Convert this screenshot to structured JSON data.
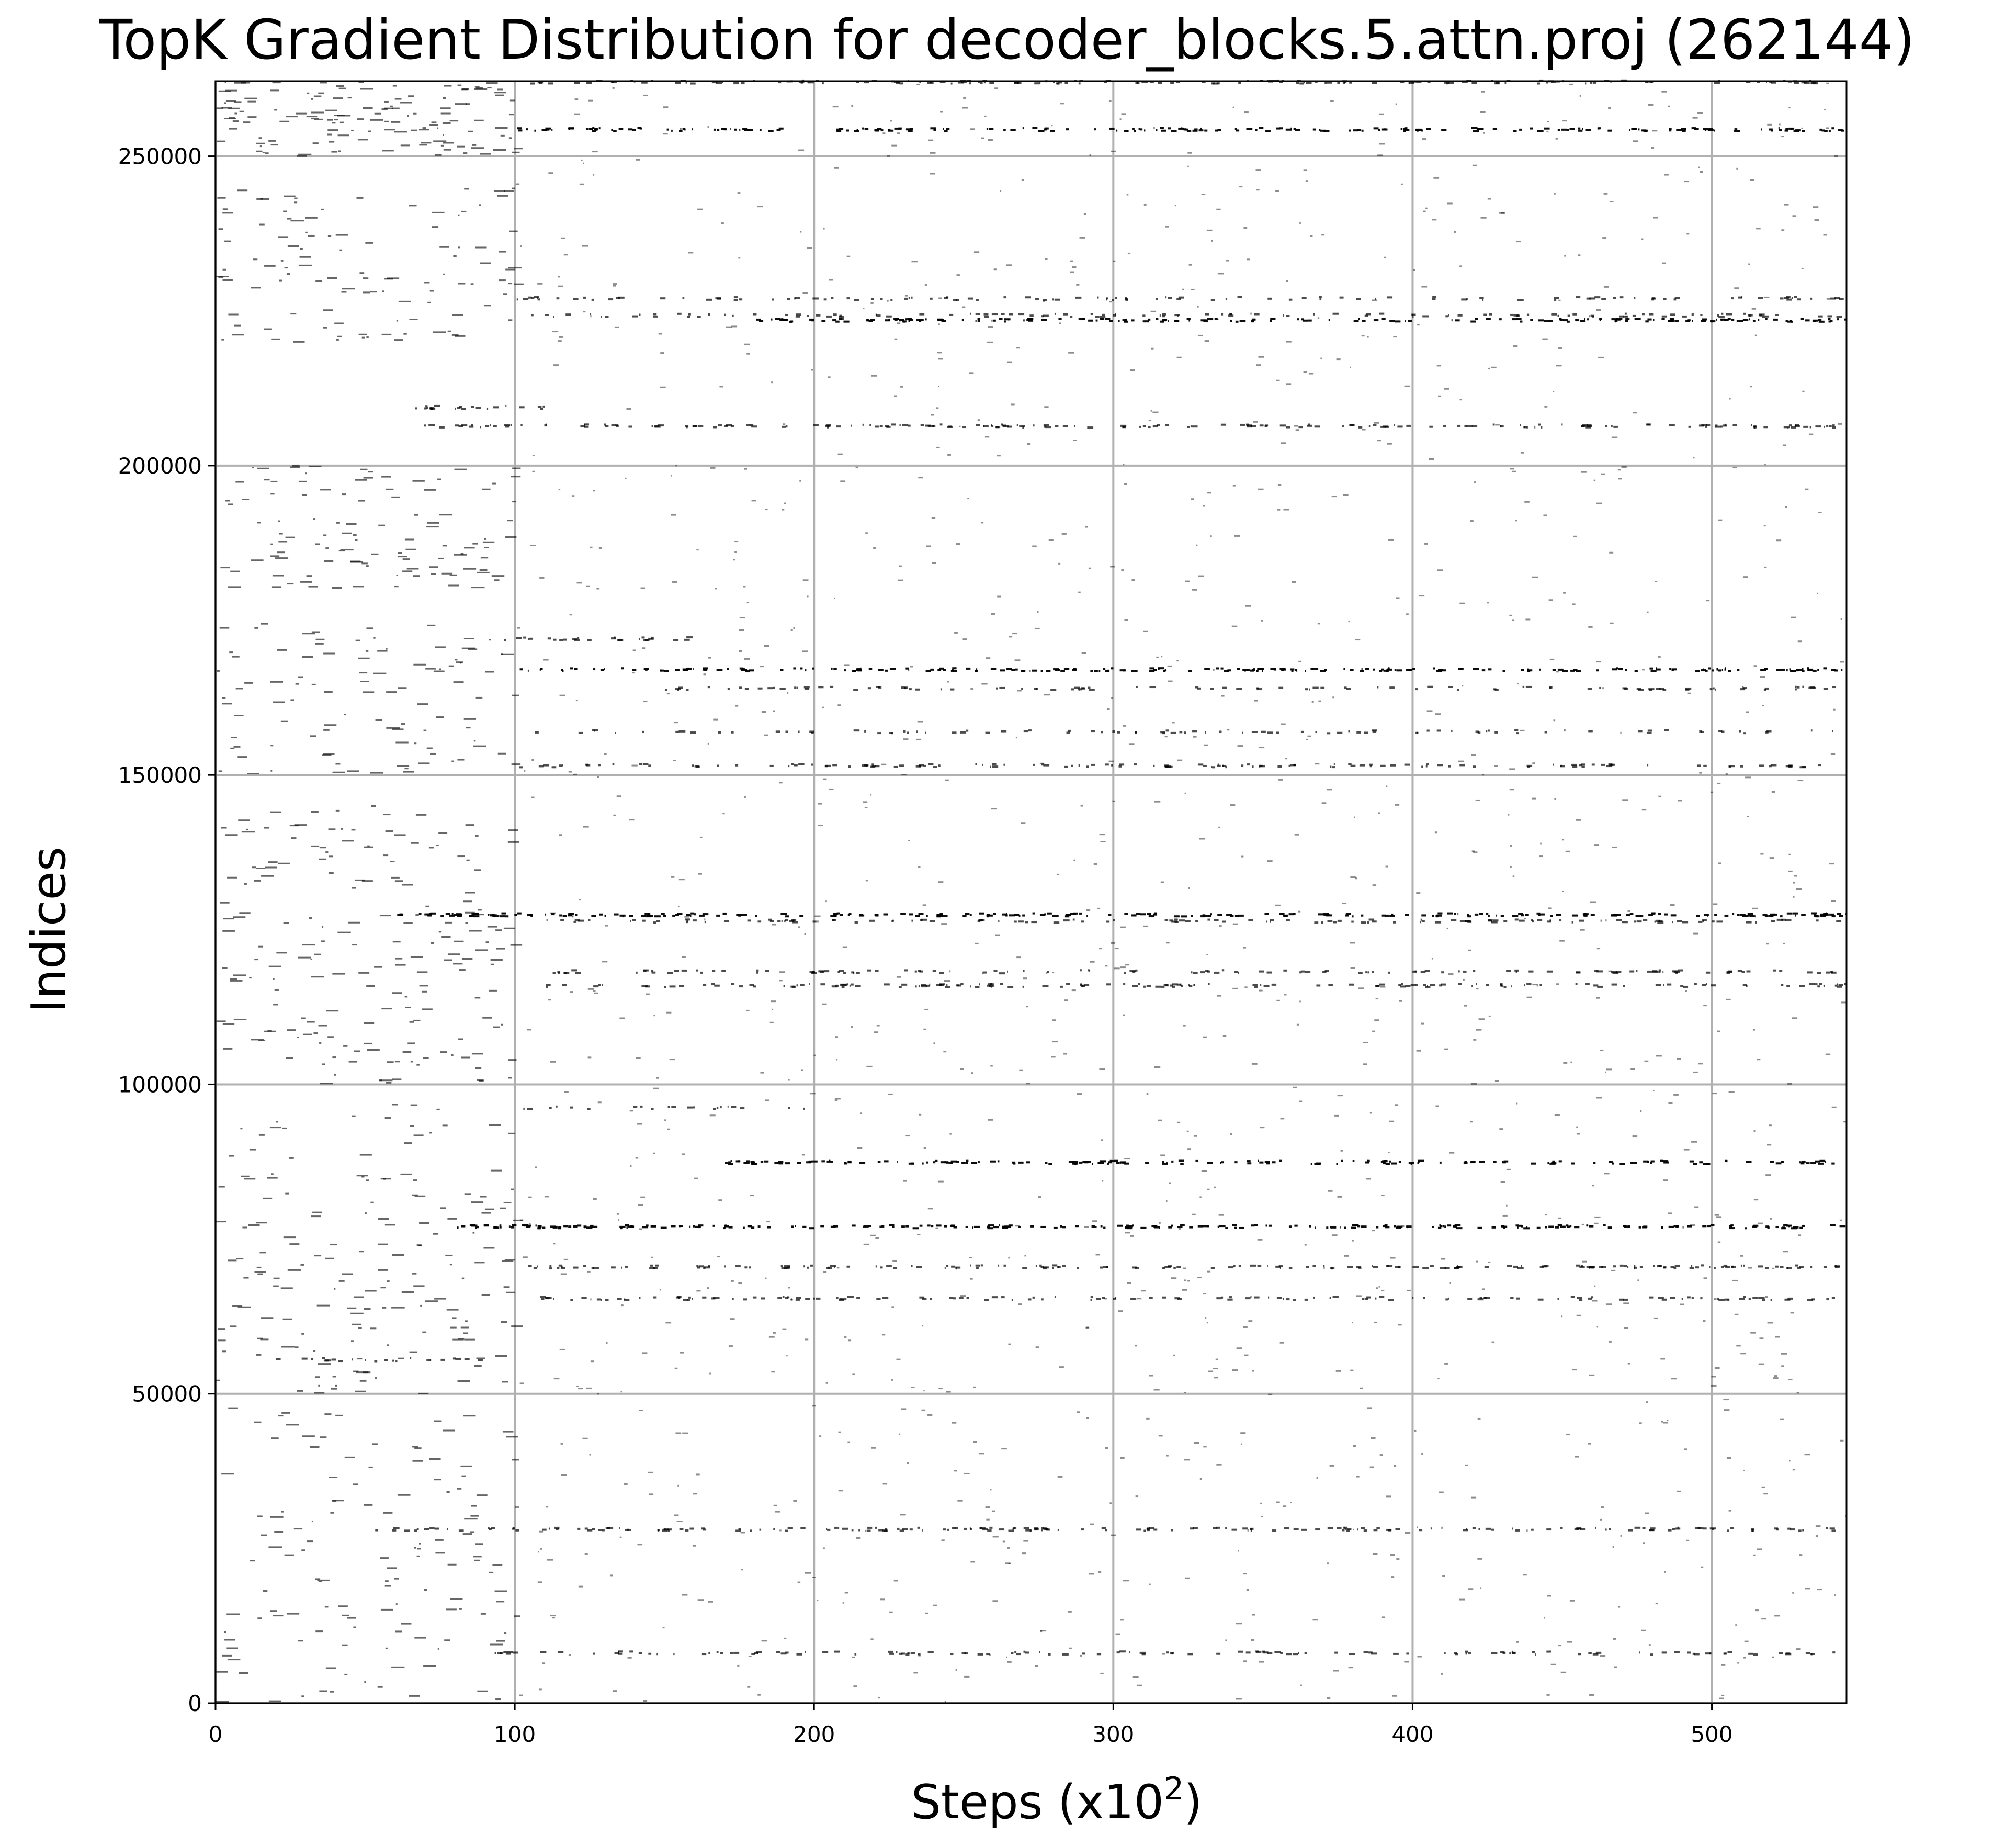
{
  "chart_data": {
    "type": "scatter",
    "title": "TopK Gradient Distribution for decoder_blocks.5.attn.proj (262144)",
    "xlabel": "Steps (x10",
    "xlabel_exponent": "2",
    "xlabel_close": ")",
    "ylabel": "Indices",
    "xlim": [
      0,
      545
    ],
    "ylim": [
      0,
      262144
    ],
    "grid": true,
    "marker_color": "#000000",
    "grid_color": "#b0b0b0",
    "x_ticks": [
      {
        "value": 0,
        "label": "0"
      },
      {
        "value": 100,
        "label": "100"
      },
      {
        "value": 200,
        "label": "200"
      },
      {
        "value": 300,
        "label": "300"
      },
      {
        "value": 400,
        "label": "400"
      },
      {
        "value": 500,
        "label": "500"
      }
    ],
    "y_ticks": [
      {
        "value": 0,
        "label": "0"
      },
      {
        "value": 50000,
        "label": "50000"
      },
      {
        "value": 100000,
        "label": "100000"
      },
      {
        "value": 150000,
        "label": "150000"
      },
      {
        "value": 200000,
        "label": "200000"
      },
      {
        "value": 250000,
        "label": "250000"
      }
    ],
    "bands": [
      {
        "index": 262000,
        "x_start": 100,
        "x_end": 545,
        "density": 0.6
      },
      {
        "index": 254300,
        "x_start": 100,
        "x_end": 545,
        "density": 0.85
      },
      {
        "index": 227000,
        "x_start": 100,
        "x_end": 545,
        "density": 0.5
      },
      {
        "index": 224300,
        "x_start": 100,
        "x_end": 545,
        "density": 0.5
      },
      {
        "index": 223500,
        "x_start": 180,
        "x_end": 545,
        "density": 0.95
      },
      {
        "index": 209400,
        "x_start": 62,
        "x_end": 110,
        "density": 0.8
      },
      {
        "index": 206400,
        "x_start": 62,
        "x_end": 545,
        "density": 0.65
      },
      {
        "index": 172000,
        "x_start": 95,
        "x_end": 160,
        "density": 0.7
      },
      {
        "index": 167000,
        "x_start": 100,
        "x_end": 545,
        "density": 0.95
      },
      {
        "index": 164000,
        "x_start": 150,
        "x_end": 545,
        "density": 0.4
      },
      {
        "index": 157000,
        "x_start": 100,
        "x_end": 545,
        "density": 0.35
      },
      {
        "index": 151500,
        "x_start": 100,
        "x_end": 545,
        "density": 0.55
      },
      {
        "index": 127400,
        "x_start": 60,
        "x_end": 545,
        "density": 0.97
      },
      {
        "index": 126400,
        "x_start": 110,
        "x_end": 545,
        "density": 0.55
      },
      {
        "index": 118200,
        "x_start": 110,
        "x_end": 545,
        "density": 0.5
      },
      {
        "index": 116000,
        "x_start": 110,
        "x_end": 545,
        "density": 0.6
      },
      {
        "index": 96200,
        "x_start": 100,
        "x_end": 200,
        "density": 0.5
      },
      {
        "index": 87400,
        "x_start": 170,
        "x_end": 545,
        "density": 0.85
      },
      {
        "index": 77000,
        "x_start": 80,
        "x_end": 545,
        "density": 0.98
      },
      {
        "index": 70500,
        "x_start": 100,
        "x_end": 545,
        "density": 0.75
      },
      {
        "index": 65400,
        "x_start": 100,
        "x_end": 545,
        "density": 0.55
      },
      {
        "index": 55500,
        "x_start": 20,
        "x_end": 95,
        "density": 0.5
      },
      {
        "index": 28100,
        "x_start": 50,
        "x_end": 545,
        "density": 0.7
      },
      {
        "index": 8100,
        "x_start": 75,
        "x_end": 545,
        "density": 0.5
      }
    ],
    "early_clusters": [
      {
        "x_start": 0,
        "x_end": 100,
        "index_start": 250000,
        "index_end": 262144,
        "count": 140
      },
      {
        "x_start": 0,
        "x_end": 100,
        "index_start": 220000,
        "index_end": 245000,
        "count": 110
      },
      {
        "x_start": 0,
        "x_end": 100,
        "index_start": 180000,
        "index_end": 200000,
        "count": 110
      },
      {
        "x_start": 0,
        "x_end": 100,
        "index_start": 150000,
        "index_end": 175000,
        "count": 100
      },
      {
        "x_start": 0,
        "x_end": 100,
        "index_start": 100000,
        "index_end": 145000,
        "count": 190
      },
      {
        "x_start": 0,
        "x_end": 100,
        "index_start": 50000,
        "index_end": 97000,
        "count": 170
      },
      {
        "x_start": 0,
        "x_end": 100,
        "index_start": 0,
        "index_end": 48000,
        "count": 130
      }
    ],
    "background_density": 0.55
  }
}
